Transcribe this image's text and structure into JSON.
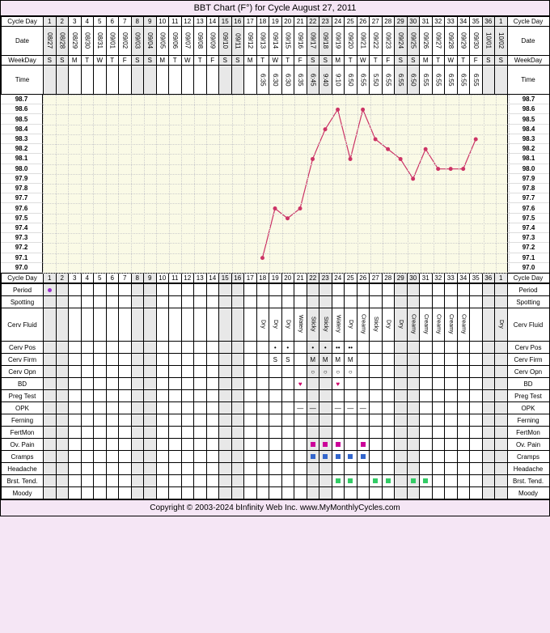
{
  "title": "BBT Chart (F°) for Cycle August 27, 2011",
  "footer": "Copyright © 2003-2024 bInfinity Web Inc.     www.MyMonthlyCycles.com",
  "labels": {
    "cycleDay": "Cycle Day",
    "date": "Date",
    "weekday": "WeekDay",
    "time": "Time"
  },
  "cycleDays": [
    1,
    2,
    3,
    4,
    5,
    6,
    7,
    8,
    9,
    10,
    11,
    12,
    13,
    14,
    15,
    16,
    17,
    18,
    19,
    20,
    21,
    22,
    23,
    24,
    25,
    26,
    27,
    28,
    29,
    30,
    31,
    32,
    33,
    34,
    35,
    36,
    1
  ],
  "dates": [
    "08/27",
    "08/28",
    "08/29",
    "08/30",
    "08/31",
    "09/01",
    "09/02",
    "09/03",
    "09/04",
    "09/05",
    "09/06",
    "09/07",
    "09/08",
    "09/09",
    "09/10",
    "09/11",
    "09/12",
    "09/13",
    "09/14",
    "09/15",
    "09/16",
    "09/17",
    "09/18",
    "09/19",
    "09/20",
    "09/21",
    "09/22",
    "09/23",
    "09/24",
    "09/25",
    "09/26",
    "09/27",
    "09/28",
    "09/29",
    "09/30",
    "10/01",
    "10/02"
  ],
  "weekdays": [
    "S",
    "S",
    "M",
    "T",
    "W",
    "T",
    "F",
    "S",
    "S",
    "M",
    "T",
    "W",
    "T",
    "F",
    "S",
    "S",
    "M",
    "T",
    "W",
    "T",
    "F",
    "S",
    "S",
    "M",
    "T",
    "W",
    "T",
    "F",
    "S",
    "S",
    "M",
    "T",
    "W",
    "T",
    "F",
    "S",
    "S"
  ],
  "weekend": [
    true,
    true,
    false,
    false,
    false,
    false,
    false,
    true,
    true,
    false,
    false,
    false,
    false,
    false,
    true,
    true,
    false,
    false,
    false,
    false,
    false,
    true,
    true,
    false,
    false,
    false,
    false,
    false,
    true,
    true,
    false,
    false,
    false,
    false,
    false,
    true,
    true
  ],
  "times": [
    "",
    "",
    "",
    "",
    "",
    "",
    "",
    "",
    "",
    "",
    "",
    "",
    "",
    "",
    "",
    "",
    "",
    "6:35",
    "6:30",
    "6:30",
    "6:35",
    "6:45",
    "9:40",
    "9:10",
    "6:50",
    "6:55",
    "5:50",
    "6:55",
    "6:55",
    "6:50",
    "6:55",
    "6:55",
    "6:55",
    "6:55",
    "6:55",
    "",
    ""
  ],
  "tempScale": [
    98.7,
    98.6,
    98.5,
    98.4,
    98.3,
    98.2,
    98.1,
    98.0,
    97.9,
    97.8,
    97.7,
    97.6,
    97.5,
    97.4,
    97.3,
    97.2,
    97.1,
    97.0
  ],
  "tempPoints": [
    {
      "day": 18,
      "temp": 97.1
    },
    {
      "day": 19,
      "temp": 97.6
    },
    {
      "day": 20,
      "temp": 97.5
    },
    {
      "day": 21,
      "temp": 97.6
    },
    {
      "day": 22,
      "temp": 98.1
    },
    {
      "day": 23,
      "temp": 98.4
    },
    {
      "day": 24,
      "temp": 98.6
    },
    {
      "day": 25,
      "temp": 98.1
    },
    {
      "day": 26,
      "temp": 98.6
    },
    {
      "day": 27,
      "temp": 98.3
    },
    {
      "day": 28,
      "temp": 98.2
    },
    {
      "day": 29,
      "temp": 98.1
    },
    {
      "day": 30,
      "temp": 97.9
    },
    {
      "day": 31,
      "temp": 98.2
    },
    {
      "day": 32,
      "temp": 98.0
    },
    {
      "day": 33,
      "temp": 98.0
    },
    {
      "day": 34,
      "temp": 98.0
    },
    {
      "day": 35,
      "temp": 98.3
    }
  ],
  "chartStyle": {
    "lineColor": "#cc3366",
    "pointColor": "#cc3366",
    "pointRadius": 2.5,
    "lineWidth": 1.2,
    "plotBg": "#fafae6",
    "gridColor": "#cccccc"
  },
  "trackers": [
    {
      "name": "Period",
      "cells": {
        "1": {
          "type": "dot",
          "color": "#9933cc"
        }
      }
    },
    {
      "name": "Spotting",
      "cells": {}
    },
    {
      "name": "Cerv Fluid",
      "vertical": true,
      "cells": {
        "18": "Dry",
        "19": "Dry",
        "20": "Dry",
        "21": "Watery",
        "22": "Sticky",
        "23": "Sticky",
        "24": "Watery",
        "25": "Dry",
        "26": "Creamy",
        "27": "Sticky",
        "28": "Dry",
        "29": "Dry",
        "30": "Creamy",
        "31": "Creamy",
        "32": "Creamy",
        "33": "Creamy",
        "34": "Creamy",
        "37": "Dry"
      }
    },
    {
      "name": "Cerv Pos",
      "cells": {
        "19": "•",
        "20": "•",
        "22": "•",
        "23": "•",
        "24": "••",
        "25": "••"
      }
    },
    {
      "name": "Cerv Firm",
      "cells": {
        "19": "S",
        "20": "S",
        "22": "M",
        "23": "M",
        "24": "M",
        "25": "M"
      }
    },
    {
      "name": "Cerv Opn",
      "cells": {
        "22": "○",
        "23": "○",
        "24": "○",
        "25": "○"
      }
    },
    {
      "name": "BD",
      "cells": {
        "21": {
          "type": "heart"
        },
        "24": {
          "type": "heart"
        }
      }
    },
    {
      "name": "Preg Test",
      "cells": {}
    },
    {
      "name": "OPK",
      "cells": {
        "21": "—",
        "22": "—",
        "24": "—",
        "25": "—",
        "26": "—"
      }
    },
    {
      "name": "Ferning",
      "cells": {}
    },
    {
      "name": "FertMon",
      "cells": {}
    },
    {
      "name": "Ov. Pain",
      "cells": {
        "22": {
          "type": "sq",
          "color": "#cc0099"
        },
        "23": {
          "type": "sq",
          "color": "#cc0099"
        },
        "24": {
          "type": "sq",
          "color": "#cc0099"
        },
        "26": {
          "type": "sq",
          "color": "#cc0099"
        }
      }
    },
    {
      "name": "Cramps",
      "cells": {
        "22": {
          "type": "sq",
          "color": "#3366cc"
        },
        "23": {
          "type": "sq",
          "color": "#3366cc"
        },
        "24": {
          "type": "sq",
          "color": "#3366cc"
        },
        "25": {
          "type": "sq",
          "color": "#3366cc"
        },
        "26": {
          "type": "sq",
          "color": "#3366cc"
        }
      }
    },
    {
      "name": "Headache",
      "cells": {}
    },
    {
      "name": "Brst. Tend.",
      "cells": {
        "24": {
          "type": "sq",
          "color": "#33cc66"
        },
        "25": {
          "type": "sq",
          "color": "#33cc66"
        },
        "27": {
          "type": "sq",
          "color": "#33cc66"
        },
        "28": {
          "type": "sq",
          "color": "#33cc66"
        },
        "30": {
          "type": "sq",
          "color": "#33cc66"
        },
        "31": {
          "type": "sq",
          "color": "#33cc66"
        }
      }
    },
    {
      "name": "Moody",
      "cells": {}
    }
  ]
}
